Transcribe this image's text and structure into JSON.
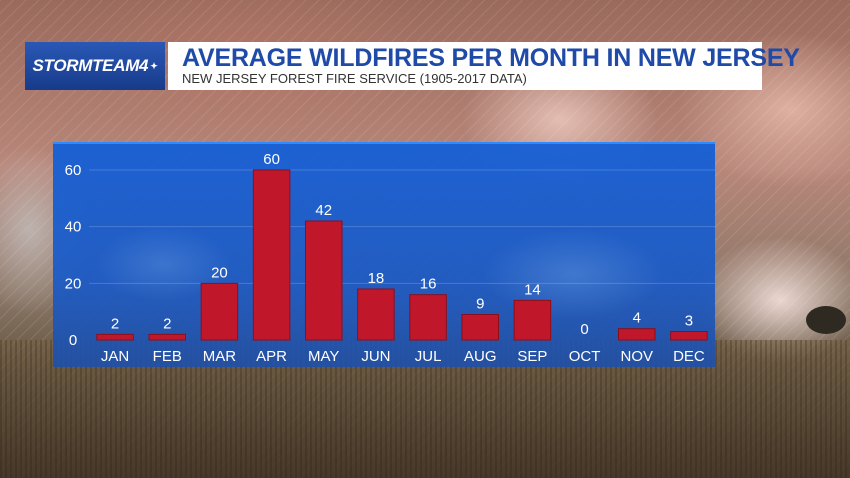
{
  "header": {
    "logo_text": "STORMTEAM4",
    "title": "AVERAGE WILDFIRES PER MONTH IN NEW JERSEY",
    "subtitle": "NEW JERSEY FOREST FIRE SERVICE (1905-2017 DATA)"
  },
  "colors": {
    "bar": "#c0182a",
    "chart_bg": "#1d5cd0",
    "title": "#1f4aa8"
  },
  "chart_data": {
    "type": "bar",
    "title": "AVERAGE WILDFIRES PER MONTH IN NEW JERSEY",
    "subtitle": "NEW JERSEY FOREST FIRE SERVICE (1905-2017 DATA)",
    "xlabel": "",
    "ylabel": "",
    "categories": [
      "JAN",
      "FEB",
      "MAR",
      "APR",
      "MAY",
      "JUN",
      "JUL",
      "AUG",
      "SEP",
      "OCT",
      "NOV",
      "DEC"
    ],
    "values": [
      2,
      2,
      20,
      60,
      42,
      18,
      16,
      9,
      14,
      0,
      4,
      3
    ],
    "ylim": [
      0,
      60
    ],
    "yticks": [
      0,
      20,
      40,
      60
    ],
    "grid": true,
    "legend": "none"
  }
}
